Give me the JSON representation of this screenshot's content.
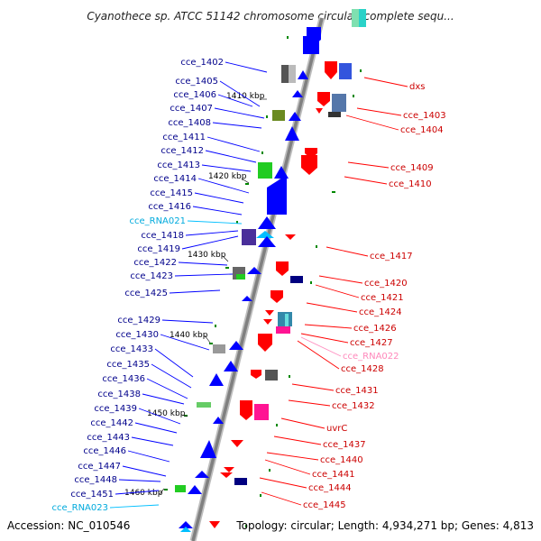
{
  "title": "Cyanothece sp. ATCC 51142 chromosome circular, complete sequ...",
  "footer": {
    "accession": "Accession: NC_010546",
    "summary": "Topology: circular; Length: 4,934,271 bp; Genes: 4,813"
  },
  "colors": {
    "plus_strand": "#0000ff",
    "minus_strand": "#ff0000",
    "rna": "#00bfff",
    "rna_minus": "#ff8fc0",
    "backbone": "#8c8c8c",
    "tick": "#008800"
  },
  "kbp_labels": [
    {
      "text": "1410 kbp"
    },
    {
      "text": "1420 kbp"
    },
    {
      "text": "1430 kbp"
    },
    {
      "text": "1440 kbp"
    },
    {
      "text": "1450 kbp"
    },
    {
      "text": "1460 kbp"
    }
  ],
  "left_labels": [
    {
      "text": "cce_1402",
      "type": "gene"
    },
    {
      "text": "cce_1405",
      "type": "gene"
    },
    {
      "text": "cce_1406",
      "type": "gene"
    },
    {
      "text": "cce_1407",
      "type": "gene"
    },
    {
      "text": "cce_1408",
      "type": "gene"
    },
    {
      "text": "cce_1411",
      "type": "gene"
    },
    {
      "text": "cce_1412",
      "type": "gene"
    },
    {
      "text": "cce_1413",
      "type": "gene"
    },
    {
      "text": "cce_1414",
      "type": "gene"
    },
    {
      "text": "cce_1415",
      "type": "gene"
    },
    {
      "text": "cce_1416",
      "type": "gene"
    },
    {
      "text": "cce_RNA021",
      "type": "rna"
    },
    {
      "text": "cce_1418",
      "type": "gene"
    },
    {
      "text": "cce_1419",
      "type": "gene"
    },
    {
      "text": "cce_1422",
      "type": "gene"
    },
    {
      "text": "cce_1423",
      "type": "gene"
    },
    {
      "text": "cce_1425",
      "type": "gene"
    },
    {
      "text": "cce_1429",
      "type": "gene"
    },
    {
      "text": "cce_1430",
      "type": "gene"
    },
    {
      "text": "cce_1433",
      "type": "gene"
    },
    {
      "text": "cce_1435",
      "type": "gene"
    },
    {
      "text": "cce_1436",
      "type": "gene"
    },
    {
      "text": "cce_1438",
      "type": "gene"
    },
    {
      "text": "cce_1439",
      "type": "gene"
    },
    {
      "text": "cce_1442",
      "type": "gene"
    },
    {
      "text": "cce_1443",
      "type": "gene"
    },
    {
      "text": "cce_1446",
      "type": "gene"
    },
    {
      "text": "cce_1447",
      "type": "gene"
    },
    {
      "text": "cce_1448",
      "type": "gene"
    },
    {
      "text": "cce_1451",
      "type": "gene"
    },
    {
      "text": "cce_RNA023",
      "type": "rna"
    }
  ],
  "right_labels": [
    {
      "text": "dxs",
      "type": "gene"
    },
    {
      "text": "cce_1403",
      "type": "gene"
    },
    {
      "text": "cce_1404",
      "type": "gene"
    },
    {
      "text": "cce_1409",
      "type": "gene"
    },
    {
      "text": "cce_1410",
      "type": "gene"
    },
    {
      "text": "cce_1417",
      "type": "gene"
    },
    {
      "text": "cce_1420",
      "type": "gene"
    },
    {
      "text": "cce_1421",
      "type": "gene"
    },
    {
      "text": "cce_1424",
      "type": "gene"
    },
    {
      "text": "cce_1426",
      "type": "gene"
    },
    {
      "text": "cce_1427",
      "type": "gene"
    },
    {
      "text": "cce_RNA022",
      "type": "rna"
    },
    {
      "text": "cce_1428",
      "type": "gene"
    },
    {
      "text": "cce_1431",
      "type": "gene"
    },
    {
      "text": "cce_1432",
      "type": "gene"
    },
    {
      "text": "uvrC",
      "type": "gene"
    },
    {
      "text": "cce_1437",
      "type": "gene"
    },
    {
      "text": "cce_1440",
      "type": "gene"
    },
    {
      "text": "cce_1441",
      "type": "gene"
    },
    {
      "text": "cce_1444",
      "type": "gene"
    },
    {
      "text": "cce_1445",
      "type": "gene"
    }
  ]
}
